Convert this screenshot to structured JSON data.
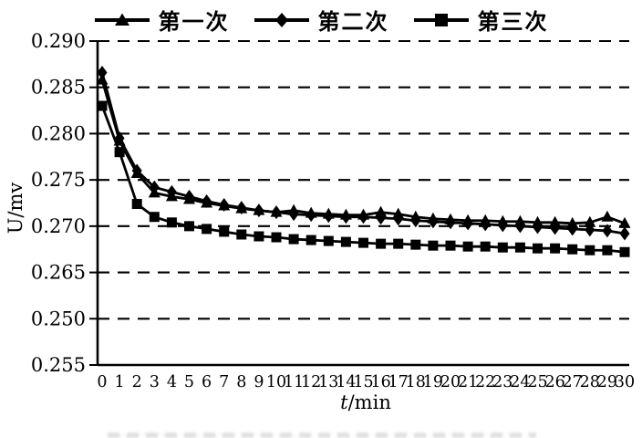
{
  "colors": {
    "foreground": "#000000",
    "background": "#ffffff"
  },
  "figure": {
    "y_axis_label": "U/mv",
    "x_axis_label_var": "t",
    "x_axis_label_unit": "/min"
  },
  "chart_data": {
    "type": "line",
    "title": "",
    "xlabel": "t/min",
    "ylabel": "U/mv",
    "legend_position": "top-center",
    "grid": "horizontal dashed gridlines",
    "x": [
      0,
      1,
      2,
      3,
      4,
      5,
      6,
      7,
      8,
      9,
      10,
      11,
      12,
      13,
      14,
      15,
      16,
      17,
      18,
      19,
      20,
      21,
      22,
      23,
      24,
      25,
      26,
      27,
      28,
      29,
      30
    ],
    "xtick_labels": [
      "0",
      "1",
      "2",
      "3",
      "4",
      "5",
      "6",
      "7",
      "8",
      "9",
      "10",
      "11",
      "12",
      "13",
      "14",
      "15",
      "16",
      "17",
      "18",
      "19",
      "20",
      "21",
      "22",
      "23",
      "24",
      "25",
      "26",
      "27",
      "28",
      "29",
      "30"
    ],
    "ytick_labels": [
      "0.290",
      "0.285",
      "0.280",
      "0.275",
      "0.270",
      "0.265",
      "0.250",
      "0.255"
    ],
    "y_top_value": 0.29,
    "y_step_per_gridline": 0.005,
    "xlim": [
      0,
      30
    ],
    "series": [
      {
        "name": "第一次",
        "marker": "triangle",
        "color": "#000000",
        "values": [
          0.2858,
          0.2792,
          0.2757,
          0.2736,
          0.2732,
          0.2729,
          0.2725,
          0.2722,
          0.2719,
          0.2717,
          0.2715,
          0.2717,
          0.2714,
          0.2713,
          0.2712,
          0.2712,
          0.2715,
          0.2713,
          0.271,
          0.2708,
          0.2707,
          0.2706,
          0.2706,
          0.2705,
          0.2705,
          0.2704,
          0.2704,
          0.2703,
          0.2704,
          0.271,
          0.2703
        ]
      },
      {
        "name": "第二次",
        "marker": "diamond",
        "color": "#000000",
        "values": [
          0.2866,
          0.2795,
          0.276,
          0.2742,
          0.2737,
          0.2732,
          0.2727,
          0.2723,
          0.272,
          0.2717,
          0.2715,
          0.2713,
          0.2712,
          0.2711,
          0.271,
          0.271,
          0.2709,
          0.2708,
          0.2706,
          0.2705,
          0.2704,
          0.2703,
          0.2702,
          0.2701,
          0.27,
          0.2699,
          0.2698,
          0.2697,
          0.2696,
          0.2695,
          0.2692
        ]
      },
      {
        "name": "第三次",
        "marker": "square",
        "color": "#000000",
        "values": [
          0.283,
          0.278,
          0.2724,
          0.271,
          0.2704,
          0.27,
          0.2697,
          0.2694,
          0.2691,
          0.2689,
          0.2688,
          0.2686,
          0.2685,
          0.2684,
          0.2683,
          0.2682,
          0.2681,
          0.2681,
          0.268,
          0.2679,
          0.2679,
          0.2678,
          0.2678,
          0.2677,
          0.2677,
          0.2676,
          0.2676,
          0.2675,
          0.2674,
          0.2674,
          0.2672
        ]
      }
    ]
  }
}
